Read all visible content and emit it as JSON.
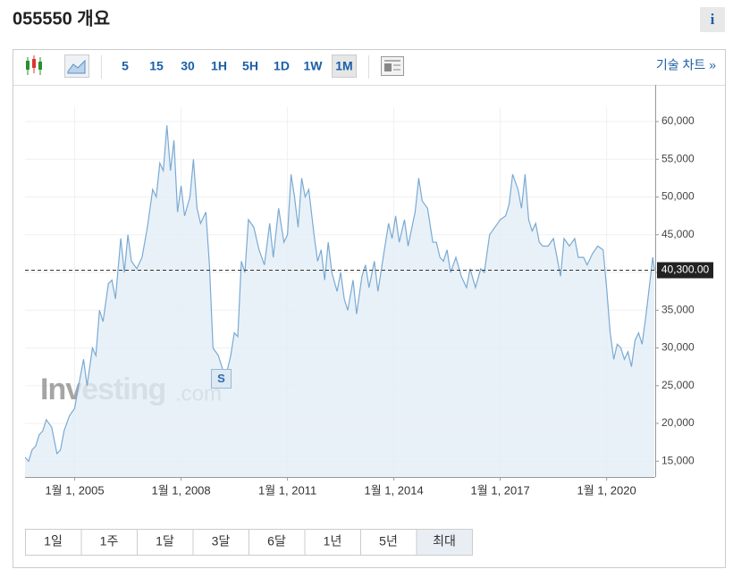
{
  "header": {
    "title": "055550 개요",
    "info": "i"
  },
  "toolbar": {
    "intervals": [
      "5",
      "15",
      "30",
      "1H",
      "5H",
      "1D",
      "1W",
      "1M"
    ],
    "interval_active": 7,
    "technical_link": "기술 차트 »"
  },
  "chart_data": {
    "type": "area",
    "color": "#7aaad3",
    "fill": "#e3edf6",
    "x": [
      2003.6,
      2003.7,
      2003.8,
      2003.9,
      2004.0,
      2004.1,
      2004.2,
      2004.35,
      2004.5,
      2004.6,
      2004.7,
      2004.85,
      2005.0,
      2005.15,
      2005.25,
      2005.35,
      2005.5,
      2005.6,
      2005.7,
      2005.8,
      2005.95,
      2006.05,
      2006.15,
      2006.3,
      2006.4,
      2006.5,
      2006.6,
      2006.75,
      2006.9,
      2007.05,
      2007.2,
      2007.3,
      2007.4,
      2007.5,
      2007.6,
      2007.7,
      2007.8,
      2007.9,
      2008.0,
      2008.1,
      2008.25,
      2008.35,
      2008.45,
      2008.55,
      2008.7,
      2008.8,
      2008.9,
      2009.05,
      2009.15,
      2009.25,
      2009.4,
      2009.5,
      2009.6,
      2009.7,
      2009.8,
      2009.9,
      2010.05,
      2010.2,
      2010.35,
      2010.5,
      2010.6,
      2010.75,
      2010.9,
      2011.0,
      2011.1,
      2011.2,
      2011.3,
      2011.4,
      2011.5,
      2011.6,
      2011.75,
      2011.85,
      2011.95,
      2012.05,
      2012.15,
      2012.25,
      2012.4,
      2012.5,
      2012.6,
      2012.7,
      2012.85,
      2012.95,
      2013.1,
      2013.2,
      2013.3,
      2013.45,
      2013.55,
      2013.7,
      2013.85,
      2013.95,
      2014.05,
      2014.15,
      2014.3,
      2014.4,
      2014.6,
      2014.7,
      2014.8,
      2014.95,
      2015.1,
      2015.2,
      2015.3,
      2015.4,
      2015.5,
      2015.6,
      2015.75,
      2015.9,
      2016.05,
      2016.15,
      2016.3,
      2016.45,
      2016.55,
      2016.7,
      2016.85,
      2017.0,
      2017.15,
      2017.25,
      2017.35,
      2017.5,
      2017.6,
      2017.7,
      2017.8,
      2017.9,
      2018.0,
      2018.1,
      2018.2,
      2018.35,
      2018.5,
      2018.6,
      2018.7,
      2018.8,
      2018.95,
      2019.1,
      2019.2,
      2019.35,
      2019.45,
      2019.6,
      2019.75,
      2019.9,
      2020.0,
      2020.1,
      2020.2,
      2020.3,
      2020.4,
      2020.5,
      2020.6,
      2020.7,
      2020.8,
      2020.9,
      2021.0,
      2021.1,
      2021.2,
      2021.3,
      2021.35
    ],
    "values": [
      15500,
      15000,
      16500,
      17000,
      18500,
      19000,
      20500,
      19500,
      16000,
      16500,
      19000,
      21000,
      22000,
      26000,
      28500,
      25000,
      30000,
      29000,
      35000,
      33500,
      38500,
      39000,
      36500,
      44500,
      40000,
      45000,
      41500,
      40500,
      42000,
      46000,
      51000,
      50000,
      54500,
      53500,
      59500,
      53500,
      57500,
      48000,
      51500,
      47500,
      50000,
      55000,
      48500,
      46500,
      48000,
      41000,
      30000,
      29000,
      27500,
      26000,
      29000,
      32000,
      31500,
      41500,
      40000,
      47000,
      46000,
      43000,
      41000,
      46500,
      42000,
      48500,
      44000,
      45000,
      53000,
      50000,
      46000,
      52500,
      50000,
      51000,
      45000,
      41500,
      43000,
      39000,
      44000,
      40000,
      37500,
      40000,
      36500,
      35000,
      39000,
      34500,
      39500,
      41000,
      38000,
      41500,
      37500,
      42000,
      46500,
      44500,
      47500,
      44000,
      47000,
      43500,
      48000,
      52500,
      49500,
      48500,
      44000,
      44000,
      42000,
      41500,
      43000,
      40000,
      42000,
      39500,
      38000,
      40500,
      38000,
      40500,
      40000,
      45000,
      46000,
      47000,
      47500,
      49000,
      53000,
      51000,
      48500,
      53000,
      47000,
      45500,
      46500,
      44000,
      43500,
      43500,
      44500,
      42000,
      39500,
      44500,
      43500,
      44500,
      42000,
      42000,
      41000,
      42500,
      43500,
      43000,
      38000,
      32000,
      28500,
      30500,
      30000,
      28500,
      29500,
      27500,
      31000,
      32000,
      30500,
      34000,
      38000,
      42000,
      40300
    ],
    "xlim": [
      2003.6,
      2021.37
    ],
    "ylim": [
      12900,
      61900
    ],
    "xticks": [
      {
        "value": 2005,
        "label": "1월 1, 2005"
      },
      {
        "value": 2008,
        "label": "1월 1, 2008"
      },
      {
        "value": 2011,
        "label": "1월 1, 2011"
      },
      {
        "value": 2014,
        "label": "1월 1, 2014"
      },
      {
        "value": 2017,
        "label": "1월 1, 2017"
      },
      {
        "value": 2020,
        "label": "1월 1, 2020"
      }
    ],
    "yticks": [
      {
        "value": 15000,
        "label": "15,000"
      },
      {
        "value": 20000,
        "label": "20,000"
      },
      {
        "value": 25000,
        "label": "25,000"
      },
      {
        "value": 30000,
        "label": "30,000"
      },
      {
        "value": 35000,
        "label": "35,000"
      },
      {
        "value": 40000,
        "label": "40,000"
      },
      {
        "value": 45000,
        "label": "45,000"
      },
      {
        "value": 50000,
        "label": "50,000"
      },
      {
        "value": 55000,
        "label": "55,000"
      },
      {
        "value": 60000,
        "label": "60,000"
      }
    ],
    "grid": true,
    "last_price": {
      "value": 40300,
      "label": "40,300.00"
    },
    "event_marker": "S",
    "watermark": [
      "Investing",
      ".com"
    ]
  },
  "range_tabs": {
    "tabs": [
      "1일",
      "1주",
      "1달",
      "3달",
      "6달",
      "1년",
      "5년",
      "최대"
    ],
    "active": 7
  }
}
